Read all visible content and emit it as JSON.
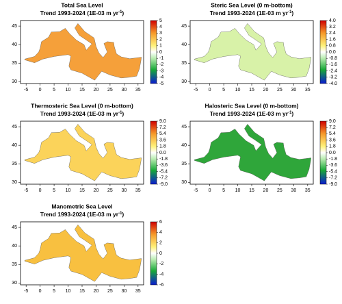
{
  "panels": [
    {
      "title": "Total Sea Level",
      "subtitle": "Trend 1993-2024 (1E-03 m yr",
      "subtitle_exponent": "-1",
      "subtitle_end": ")",
      "xlim": [
        -7,
        37
      ],
      "ylim": [
        29.5,
        46.5
      ],
      "xticks": [
        -5,
        0,
        5,
        10,
        15,
        20,
        25,
        30,
        35
      ],
      "yticks": [
        30,
        35,
        40,
        45
      ],
      "map_color": "#f5a03a",
      "colorbar": {
        "lim": [
          -5,
          5
        ],
        "ticks": [
          5,
          4,
          3,
          2,
          1,
          0,
          -1,
          -2,
          -3,
          -4,
          -5
        ]
      }
    },
    {
      "title": "Steric Sea Level (0 m-bottom)",
      "subtitle": "Trend 1993-2024 (1E-03 m yr",
      "subtitle_exponent": "-1",
      "subtitle_end": ")",
      "xlim": [
        -7,
        37
      ],
      "ylim": [
        29.5,
        46.5
      ],
      "xticks": [
        -5,
        0,
        5,
        10,
        15,
        20,
        25,
        30,
        35
      ],
      "yticks": [
        30,
        35,
        40,
        45
      ],
      "map_color": "#d8f2a8",
      "colorbar": {
        "lim": [
          -4,
          4
        ],
        "ticks": [
          {
            "value": 4,
            "label": "4.0"
          },
          3.2,
          2.4,
          1.6,
          0.8,
          {
            "value": 0,
            "label": "0.0"
          },
          -0.8,
          -1.6,
          -2.4,
          -3.2,
          {
            "value": -4,
            "label": "-4.0"
          }
        ]
      }
    },
    {
      "title": "Thermosteric Sea Level (0 m-bottom)",
      "subtitle": "Trend 1993-2024 (1E-03 m yr",
      "subtitle_exponent": "-1",
      "subtitle_end": ")",
      "xlim": [
        -7,
        37
      ],
      "ylim": [
        29.5,
        46.5
      ],
      "xticks": [
        -5,
        0,
        5,
        10,
        15,
        20,
        25,
        30,
        35
      ],
      "yticks": [
        30,
        35,
        40,
        45
      ],
      "map_color": "#fbd35a",
      "colorbar": {
        "lim": [
          -9,
          9
        ],
        "ticks": [
          {
            "value": 9,
            "label": "9.0"
          },
          7.2,
          5.4,
          3.6,
          1.8,
          {
            "value": 0,
            "label": "0.0"
          },
          -1.8,
          -3.6,
          -5.4,
          -7.2,
          {
            "value": -9,
            "label": "-9.0"
          }
        ]
      }
    },
    {
      "title": "Halosteric Sea Level (0 m-bottom)",
      "subtitle": "Trend 1993-2024 (1E-03 m yr",
      "subtitle_exponent": "-1",
      "subtitle_end": ")",
      "xlim": [
        -7,
        37
      ],
      "ylim": [
        29.5,
        46.5
      ],
      "xticks": [
        -5,
        0,
        5,
        10,
        15,
        20,
        25,
        30,
        35
      ],
      "yticks": [
        30,
        35,
        40,
        45
      ],
      "map_color": "#2fa63a",
      "colorbar": {
        "lim": [
          -9,
          9
        ],
        "ticks": [
          {
            "value": 9,
            "label": "9.0"
          },
          7.2,
          5.4,
          3.6,
          1.8,
          {
            "value": 0,
            "label": "0.0"
          },
          -1.8,
          -3.6,
          -5.4,
          -7.2,
          {
            "value": -9,
            "label": "-9.0"
          }
        ]
      }
    },
    {
      "title": "Manometric Sea Level",
      "subtitle": "Trend 1993-2024 (1E-03 m yr",
      "subtitle_exponent": "-1",
      "subtitle_end": ")",
      "xlim": [
        -7,
        37
      ],
      "ylim": [
        29.5,
        46.5
      ],
      "xticks": [
        -5,
        0,
        5,
        10,
        15,
        20,
        25,
        30,
        35
      ],
      "yticks": [
        30,
        35,
        40,
        45
      ],
      "map_color": "#f8c040",
      "colorbar": {
        "lim": [
          -6,
          6
        ],
        "ticks": [
          6,
          4,
          2,
          0,
          -2,
          -4,
          -6
        ]
      }
    }
  ]
}
